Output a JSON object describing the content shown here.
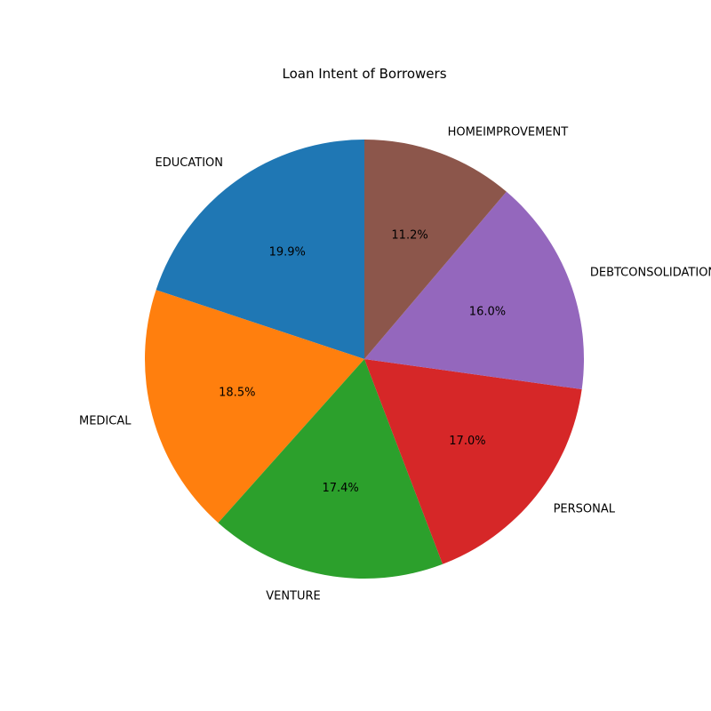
{
  "chart_data": {
    "type": "pie",
    "title": "Loan Intent of Borrowers",
    "categories": [
      "EDUCATION",
      "MEDICAL",
      "VENTURE",
      "PERSONAL",
      "DEBTCONSOLIDATION",
      "HOMEIMPROVEMENT"
    ],
    "values": [
      19.9,
      18.5,
      17.4,
      17.0,
      16.0,
      11.2
    ],
    "percent_labels": [
      "19.9%",
      "18.5%",
      "17.4%",
      "17.0%",
      "16.0%",
      "11.2%"
    ],
    "colors": [
      "#1f77b4",
      "#ff7f0e",
      "#2ca02c",
      "#d62728",
      "#9467bd",
      "#8c564b"
    ],
    "start_angle_deg": 90,
    "direction": "counterclockwise",
    "legend": "none"
  }
}
